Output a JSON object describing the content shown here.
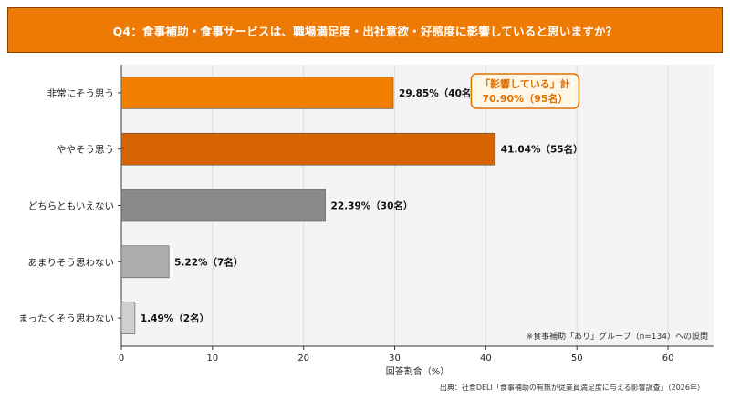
{
  "header": {
    "title": "Q4：食事補助・食事サービスは、職場満足度・出社意欲・好感度に影響していると思いますか？"
  },
  "chart_data": {
    "type": "bar",
    "orientation": "horizontal",
    "categories": [
      "非常にそう思う",
      "ややそう思う",
      "どちらともいえない",
      "あまりそう思わない",
      "まったくそう思わない"
    ],
    "values": [
      29.85,
      41.04,
      22.39,
      5.22,
      1.49
    ],
    "counts": [
      40,
      55,
      30,
      7,
      2
    ],
    "data_labels": [
      "29.85%（40名）",
      "41.04%（55名）",
      "22.39%（30名）",
      "5.22%（7名）",
      "1.49%（2名）"
    ],
    "bar_colors": [
      "#f07f00",
      "#d46300",
      "#8a8a8a",
      "#adadad",
      "#cfcfcf"
    ],
    "xlabel": "回答割合（%）",
    "ylabel": "",
    "xlim": [
      0,
      65
    ],
    "xticks": [
      0,
      10,
      20,
      30,
      40,
      50,
      60
    ],
    "grid": true,
    "plot_background": "#f4f4f4",
    "callout": {
      "line1": "「影響している」計",
      "line2": "70.90%（95名）",
      "text_color": "#e07000",
      "border_color": "#e07000",
      "fill_color": "#fff8e8"
    },
    "note": "※食事補助「あり」グループ（n=134）への設問"
  },
  "footer": {
    "source": "出典：社食DELI「食事補助の有無が従業員満足度に与える影響調査」（2026年）"
  }
}
